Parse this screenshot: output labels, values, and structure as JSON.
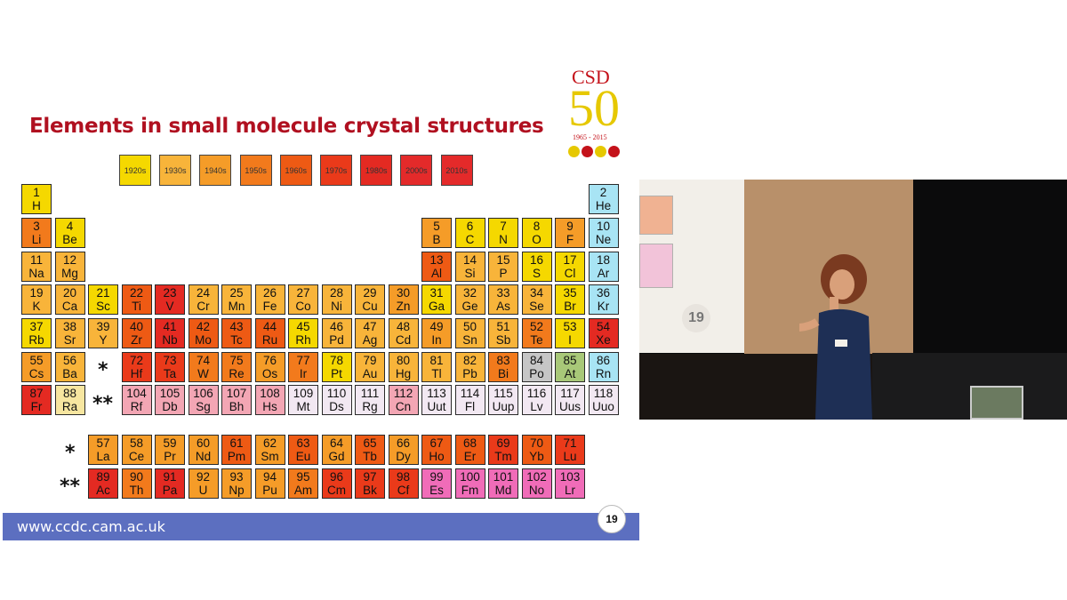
{
  "slide": {
    "title": "Elements in small molecule crystal structures",
    "footer_url": "www.ccdc.cam.ac.uk",
    "page_number": "19",
    "logo": {
      "brand": "CSD",
      "anniversary": "50",
      "years": "1965 - 2015"
    }
  },
  "legend": [
    {
      "label": "1920s",
      "color": "#f5d800"
    },
    {
      "label": "1930s",
      "color": "#f8b43a"
    },
    {
      "label": "1940s",
      "color": "#f59c28"
    },
    {
      "label": "1950s",
      "color": "#f27a1c"
    },
    {
      "label": "1960s",
      "color": "#ee5a14"
    },
    {
      "label": "1970s",
      "color": "#ea3a1a"
    },
    {
      "label": "1980s",
      "color": "#e42a22"
    },
    {
      "label": "2000s",
      "color": "#e42a2a"
    },
    {
      "label": "2010s",
      "color": "#e42a2a"
    }
  ],
  "colors": {
    "c1920": "#f5d800",
    "c1930": "#f8b43a",
    "c1940": "#f59c28",
    "c1950": "#f27a1c",
    "c1960": "#ee5a14",
    "c1970": "#ea3a1a",
    "c1980": "#e42a22",
    "c2000": "#e42a2a",
    "c2010": "#e42a2a",
    "nodata": "#f2e8f2",
    "pink": "#f06cb8",
    "lightpink": "#f3a6b4",
    "grey": "#c6c6c6",
    "sage": "#a8c878",
    "cyan": "#a8e4f4"
  },
  "markers": {
    "lanthanide": "*",
    "actinide": "**"
  },
  "elements": [
    {
      "n": "1",
      "s": "H",
      "r": 0,
      "c": 0,
      "k": "c1920"
    },
    {
      "n": "2",
      "s": "He",
      "r": 0,
      "c": 17,
      "k": "cyan"
    },
    {
      "n": "3",
      "s": "Li",
      "r": 1,
      "c": 0,
      "k": "c1950"
    },
    {
      "n": "4",
      "s": "Be",
      "r": 1,
      "c": 1,
      "k": "c1920"
    },
    {
      "n": "5",
      "s": "B",
      "r": 1,
      "c": 12,
      "k": "c1940"
    },
    {
      "n": "6",
      "s": "C",
      "r": 1,
      "c": 13,
      "k": "c1920"
    },
    {
      "n": "7",
      "s": "N",
      "r": 1,
      "c": 14,
      "k": "c1920"
    },
    {
      "n": "8",
      "s": "O",
      "r": 1,
      "c": 15,
      "k": "c1920"
    },
    {
      "n": "9",
      "s": "F",
      "r": 1,
      "c": 16,
      "k": "c1940"
    },
    {
      "n": "10",
      "s": "Ne",
      "r": 1,
      "c": 17,
      "k": "cyan"
    },
    {
      "n": "11",
      "s": "Na",
      "r": 2,
      "c": 0,
      "k": "c1930"
    },
    {
      "n": "12",
      "s": "Mg",
      "r": 2,
      "c": 1,
      "k": "c1930"
    },
    {
      "n": "13",
      "s": "Al",
      "r": 2,
      "c": 12,
      "k": "c1960"
    },
    {
      "n": "14",
      "s": "Si",
      "r": 2,
      "c": 13,
      "k": "c1930"
    },
    {
      "n": "15",
      "s": "P",
      "r": 2,
      "c": 14,
      "k": "c1930"
    },
    {
      "n": "16",
      "s": "S",
      "r": 2,
      "c": 15,
      "k": "c1920"
    },
    {
      "n": "17",
      "s": "Cl",
      "r": 2,
      "c": 16,
      "k": "c1920"
    },
    {
      "n": "18",
      "s": "Ar",
      "r": 2,
      "c": 17,
      "k": "cyan"
    },
    {
      "n": "19",
      "s": "K",
      "r": 3,
      "c": 0,
      "k": "c1930"
    },
    {
      "n": "20",
      "s": "Ca",
      "r": 3,
      "c": 1,
      "k": "c1930"
    },
    {
      "n": "21",
      "s": "Sc",
      "r": 3,
      "c": 2,
      "k": "c1920"
    },
    {
      "n": "22",
      "s": "Ti",
      "r": 3,
      "c": 3,
      "k": "c1960"
    },
    {
      "n": "23",
      "s": "V",
      "r": 3,
      "c": 4,
      "k": "c1980"
    },
    {
      "n": "24",
      "s": "Cr",
      "r": 3,
      "c": 5,
      "k": "c1930"
    },
    {
      "n": "25",
      "s": "Mn",
      "r": 3,
      "c": 6,
      "k": "c1930"
    },
    {
      "n": "26",
      "s": "Fe",
      "r": 3,
      "c": 7,
      "k": "c1930"
    },
    {
      "n": "27",
      "s": "Co",
      "r": 3,
      "c": 8,
      "k": "c1930"
    },
    {
      "n": "28",
      "s": "Ni",
      "r": 3,
      "c": 9,
      "k": "c1930"
    },
    {
      "n": "29",
      "s": "Cu",
      "r": 3,
      "c": 10,
      "k": "c1930"
    },
    {
      "n": "30",
      "s": "Zn",
      "r": 3,
      "c": 11,
      "k": "c1940"
    },
    {
      "n": "31",
      "s": "Ga",
      "r": 3,
      "c": 12,
      "k": "c1920"
    },
    {
      "n": "32",
      "s": "Ge",
      "r": 3,
      "c": 13,
      "k": "c1930"
    },
    {
      "n": "33",
      "s": "As",
      "r": 3,
      "c": 14,
      "k": "c1930"
    },
    {
      "n": "34",
      "s": "Se",
      "r": 3,
      "c": 15,
      "k": "c1930"
    },
    {
      "n": "35",
      "s": "Br",
      "r": 3,
      "c": 16,
      "k": "c1920"
    },
    {
      "n": "36",
      "s": "Kr",
      "r": 3,
      "c": 17,
      "k": "cyan"
    },
    {
      "n": "37",
      "s": "Rb",
      "r": 4,
      "c": 0,
      "k": "c1920"
    },
    {
      "n": "38",
      "s": "Sr",
      "r": 4,
      "c": 1,
      "k": "c1930"
    },
    {
      "n": "39",
      "s": "Y",
      "r": 4,
      "c": 2,
      "k": "c1930"
    },
    {
      "n": "40",
      "s": "Zr",
      "r": 4,
      "c": 3,
      "k": "c1960"
    },
    {
      "n": "41",
      "s": "Nb",
      "r": 4,
      "c": 4,
      "k": "c1980"
    },
    {
      "n": "42",
      "s": "Mo",
      "r": 4,
      "c": 5,
      "k": "c1960"
    },
    {
      "n": "43",
      "s": "Tc",
      "r": 4,
      "c": 6,
      "k": "c1960"
    },
    {
      "n": "44",
      "s": "Ru",
      "r": 4,
      "c": 7,
      "k": "c1960"
    },
    {
      "n": "45",
      "s": "Rh",
      "r": 4,
      "c": 8,
      "k": "c1920"
    },
    {
      "n": "46",
      "s": "Pd",
      "r": 4,
      "c": 9,
      "k": "c1930"
    },
    {
      "n": "47",
      "s": "Ag",
      "r": 4,
      "c": 10,
      "k": "c1930"
    },
    {
      "n": "48",
      "s": "Cd",
      "r": 4,
      "c": 11,
      "k": "c1930"
    },
    {
      "n": "49",
      "s": "In",
      "r": 4,
      "c": 12,
      "k": "c1940"
    },
    {
      "n": "50",
      "s": "Sn",
      "r": 4,
      "c": 13,
      "k": "c1930"
    },
    {
      "n": "51",
      "s": "Sb",
      "r": 4,
      "c": 14,
      "k": "c1930"
    },
    {
      "n": "52",
      "s": "Te",
      "r": 4,
      "c": 15,
      "k": "c1950"
    },
    {
      "n": "53",
      "s": "I",
      "r": 4,
      "c": 16,
      "k": "c1920"
    },
    {
      "n": "54",
      "s": "Xe",
      "r": 4,
      "c": 17,
      "k": "c1980"
    },
    {
      "n": "55",
      "s": "Cs",
      "r": 5,
      "c": 0,
      "k": "c1940"
    },
    {
      "n": "56",
      "s": "Ba",
      "r": 5,
      "c": 1,
      "k": "c1930"
    },
    {
      "n": "72",
      "s": "Hf",
      "r": 5,
      "c": 3,
      "k": "c1970"
    },
    {
      "n": "73",
      "s": "Ta",
      "r": 5,
      "c": 4,
      "k": "c1970"
    },
    {
      "n": "74",
      "s": "W",
      "r": 5,
      "c": 5,
      "k": "c1950"
    },
    {
      "n": "75",
      "s": "Re",
      "r": 5,
      "c": 6,
      "k": "c1950"
    },
    {
      "n": "76",
      "s": "Os",
      "r": 5,
      "c": 7,
      "k": "c1940"
    },
    {
      "n": "77",
      "s": "Ir",
      "r": 5,
      "c": 8,
      "k": "c1950"
    },
    {
      "n": "78",
      "s": "Pt",
      "r": 5,
      "c": 9,
      "k": "c1920"
    },
    {
      "n": "79",
      "s": "Au",
      "r": 5,
      "c": 10,
      "k": "c1930"
    },
    {
      "n": "80",
      "s": "Hg",
      "r": 5,
      "c": 11,
      "k": "c1930"
    },
    {
      "n": "81",
      "s": "Tl",
      "r": 5,
      "c": 12,
      "k": "c1930"
    },
    {
      "n": "82",
      "s": "Pb",
      "r": 5,
      "c": 13,
      "k": "c1930"
    },
    {
      "n": "83",
      "s": "Bi",
      "r": 5,
      "c": 14,
      "k": "c1950"
    },
    {
      "n": "84",
      "s": "Po",
      "r": 5,
      "c": 15,
      "k": "grey"
    },
    {
      "n": "85",
      "s": "At",
      "r": 5,
      "c": 16,
      "k": "sage"
    },
    {
      "n": "86",
      "s": "Rn",
      "r": 5,
      "c": 17,
      "k": "cyan"
    },
    {
      "n": "87",
      "s": "Fr",
      "r": 6,
      "c": 0,
      "k": "c1980"
    },
    {
      "n": "88",
      "s": "Ra",
      "r": 6,
      "c": 1,
      "k": "lightyellow"
    },
    {
      "n": "104",
      "s": "Rf",
      "r": 6,
      "c": 3,
      "k": "lightpink"
    },
    {
      "n": "105",
      "s": "Db",
      "r": 6,
      "c": 4,
      "k": "lightpink"
    },
    {
      "n": "106",
      "s": "Sg",
      "r": 6,
      "c": 5,
      "k": "lightpink"
    },
    {
      "n": "107",
      "s": "Bh",
      "r": 6,
      "c": 6,
      "k": "lightpink"
    },
    {
      "n": "108",
      "s": "Hs",
      "r": 6,
      "c": 7,
      "k": "lightpink"
    },
    {
      "n": "109",
      "s": "Mt",
      "r": 6,
      "c": 8,
      "k": "nodata"
    },
    {
      "n": "110",
      "s": "Ds",
      "r": 6,
      "c": 9,
      "k": "nodata"
    },
    {
      "n": "111",
      "s": "Rg",
      "r": 6,
      "c": 10,
      "k": "nodata"
    },
    {
      "n": "112",
      "s": "Cn",
      "r": 6,
      "c": 11,
      "k": "lightpink"
    },
    {
      "n": "113",
      "s": "Uut",
      "r": 6,
      "c": 12,
      "k": "nodata"
    },
    {
      "n": "114",
      "s": "Fl",
      "r": 6,
      "c": 13,
      "k": "nodata"
    },
    {
      "n": "115",
      "s": "Uup",
      "r": 6,
      "c": 14,
      "k": "nodata"
    },
    {
      "n": "116",
      "s": "Lv",
      "r": 6,
      "c": 15,
      "k": "nodata"
    },
    {
      "n": "117",
      "s": "Uus",
      "r": 6,
      "c": 16,
      "k": "nodata"
    },
    {
      "n": "118",
      "s": "Uuo",
      "r": 6,
      "c": 17,
      "k": "nodata"
    },
    {
      "n": "57",
      "s": "La",
      "r": 7,
      "c": 2,
      "k": "c1940"
    },
    {
      "n": "58",
      "s": "Ce",
      "r": 7,
      "c": 3,
      "k": "c1940"
    },
    {
      "n": "59",
      "s": "Pr",
      "r": 7,
      "c": 4,
      "k": "c1940"
    },
    {
      "n": "60",
      "s": "Nd",
      "r": 7,
      "c": 5,
      "k": "c1940"
    },
    {
      "n": "61",
      "s": "Pm",
      "r": 7,
      "c": 6,
      "k": "c1960"
    },
    {
      "n": "62",
      "s": "Sm",
      "r": 7,
      "c": 7,
      "k": "c1940"
    },
    {
      "n": "63",
      "s": "Eu",
      "r": 7,
      "c": 8,
      "k": "c1960"
    },
    {
      "n": "64",
      "s": "Gd",
      "r": 7,
      "c": 9,
      "k": "c1940"
    },
    {
      "n": "65",
      "s": "Tb",
      "r": 7,
      "c": 10,
      "k": "c1960"
    },
    {
      "n": "66",
      "s": "Dy",
      "r": 7,
      "c": 11,
      "k": "c1940"
    },
    {
      "n": "67",
      "s": "Ho",
      "r": 7,
      "c": 12,
      "k": "c1960"
    },
    {
      "n": "68",
      "s": "Er",
      "r": 7,
      "c": 13,
      "k": "c1960"
    },
    {
      "n": "69",
      "s": "Tm",
      "r": 7,
      "c": 14,
      "k": "c1970"
    },
    {
      "n": "70",
      "s": "Yb",
      "r": 7,
      "c": 15,
      "k": "c1960"
    },
    {
      "n": "71",
      "s": "Lu",
      "r": 7,
      "c": 16,
      "k": "c1970"
    },
    {
      "n": "89",
      "s": "Ac",
      "r": 8,
      "c": 2,
      "k": "c1980"
    },
    {
      "n": "90",
      "s": "Th",
      "r": 8,
      "c": 3,
      "k": "c1950"
    },
    {
      "n": "91",
      "s": "Pa",
      "r": 8,
      "c": 4,
      "k": "c1980"
    },
    {
      "n": "92",
      "s": "U",
      "r": 8,
      "c": 5,
      "k": "c1940"
    },
    {
      "n": "93",
      "s": "Np",
      "r": 8,
      "c": 6,
      "k": "c1940"
    },
    {
      "n": "94",
      "s": "Pu",
      "r": 8,
      "c": 7,
      "k": "c1940"
    },
    {
      "n": "95",
      "s": "Am",
      "r": 8,
      "c": 8,
      "k": "c1950"
    },
    {
      "n": "96",
      "s": "Cm",
      "r": 8,
      "c": 9,
      "k": "c1970"
    },
    {
      "n": "97",
      "s": "Bk",
      "r": 8,
      "c": 10,
      "k": "c1970"
    },
    {
      "n": "98",
      "s": "Cf",
      "r": 8,
      "c": 11,
      "k": "c1970"
    },
    {
      "n": "99",
      "s": "Es",
      "r": 8,
      "c": 12,
      "k": "pink"
    },
    {
      "n": "100",
      "s": "Fm",
      "r": 8,
      "c": 13,
      "k": "pink"
    },
    {
      "n": "101",
      "s": "Md",
      "r": 8,
      "c": 14,
      "k": "pink"
    },
    {
      "n": "102",
      "s": "No",
      "r": 8,
      "c": 15,
      "k": "pink"
    },
    {
      "n": "103",
      "s": "Lr",
      "r": 8,
      "c": 16,
      "k": "pink"
    }
  ],
  "video": {
    "screen_page_number": "19"
  }
}
